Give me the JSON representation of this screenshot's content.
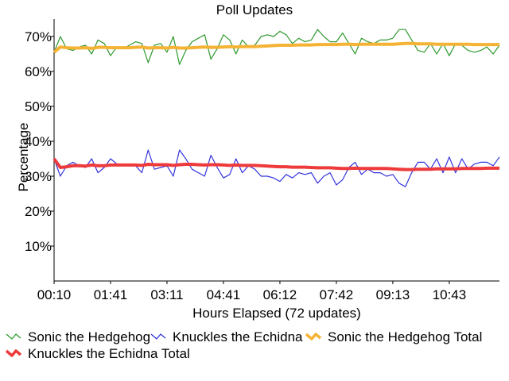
{
  "chart_data": {
    "type": "line",
    "title": "Poll Updates",
    "xlabel": "Hours Elapsed (72 updates)",
    "ylabel": "Percentage",
    "ylim": [
      0,
      75
    ],
    "yticks": [
      10,
      20,
      30,
      40,
      50,
      60,
      70
    ],
    "ytick_labels": [
      "10%",
      "20%",
      "30%",
      "40%",
      "50%",
      "60%",
      "70%"
    ],
    "xticks": [
      0,
      9,
      18,
      27,
      36,
      45,
      54,
      63
    ],
    "xtick_labels": [
      "00:10",
      "01:41",
      "03:11",
      "04:41",
      "06:12",
      "07:42",
      "09:13",
      "10:43"
    ],
    "x_count": 72,
    "grid": false,
    "legend_position": "bottom",
    "series": [
      {
        "name": "Sonic the Hedgehog",
        "color": "#2e9a2e",
        "width": 1.2,
        "values": [
          65.5,
          70.0,
          66.5,
          66.0,
          67.0,
          67.5,
          65.0,
          69.0,
          68.0,
          64.5,
          67.0,
          66.5,
          67.5,
          68.5,
          68.0,
          62.5,
          67.5,
          68.0,
          65.5,
          70.0,
          62.0,
          66.0,
          68.5,
          69.5,
          70.5,
          63.5,
          66.5,
          70.5,
          69.0,
          65.0,
          69.0,
          67.0,
          67.5,
          70.0,
          70.5,
          70.0,
          71.5,
          70.5,
          68.0,
          69.5,
          68.5,
          69.0,
          72.0,
          70.0,
          68.5,
          68.5,
          71.0,
          68.0,
          65.0,
          69.5,
          68.5,
          68.0,
          69.0,
          69.0,
          69.5,
          72.0,
          72.0,
          69.0,
          66.0,
          65.5,
          68.0,
          65.0,
          68.0,
          64.5,
          68.0,
          67.5,
          66.0,
          65.5,
          66.0,
          67.0,
          65.0,
          67.5
        ]
      },
      {
        "name": "Knuckles the Echidna",
        "color": "#3333dd",
        "width": 1.2,
        "values": [
          35.0,
          30.0,
          33.0,
          34.0,
          33.0,
          32.5,
          35.0,
          31.0,
          32.5,
          35.0,
          33.5,
          33.0,
          33.5,
          33.0,
          31.0,
          37.5,
          32.0,
          32.5,
          33.0,
          30.0,
          37.5,
          35.0,
          32.0,
          31.0,
          30.0,
          36.0,
          32.5,
          29.5,
          30.5,
          35.0,
          31.0,
          33.0,
          32.0,
          30.0,
          30.0,
          29.5,
          28.5,
          30.5,
          29.5,
          31.0,
          30.5,
          31.0,
          28.0,
          30.0,
          31.0,
          27.5,
          29.0,
          32.5,
          34.0,
          30.5,
          32.0,
          31.0,
          31.0,
          30.0,
          30.5,
          28.0,
          27.0,
          31.0,
          34.0,
          34.0,
          32.0,
          35.0,
          31.0,
          35.5,
          31.0,
          35.0,
          32.0,
          33.5,
          34.0,
          34.0,
          33.0,
          35.5
        ]
      },
      {
        "name": "Sonic the Hedgehog Total",
        "color": "#f5b335",
        "width": 4,
        "values": [
          65.5,
          67.0,
          66.8,
          66.7,
          66.7,
          66.8,
          66.6,
          66.9,
          66.9,
          66.8,
          66.8,
          66.8,
          66.8,
          66.9,
          67.0,
          66.7,
          66.8,
          66.8,
          66.7,
          66.9,
          66.7,
          66.7,
          66.8,
          66.9,
          67.0,
          66.9,
          66.9,
          67.0,
          67.1,
          67.0,
          67.1,
          67.1,
          67.1,
          67.2,
          67.3,
          67.4,
          67.5,
          67.5,
          67.5,
          67.6,
          67.6,
          67.6,
          67.7,
          67.7,
          67.7,
          67.7,
          67.8,
          67.8,
          67.7,
          67.8,
          67.8,
          67.8,
          67.8,
          67.8,
          67.8,
          67.9,
          68.0,
          68.0,
          67.9,
          67.9,
          67.9,
          67.8,
          67.8,
          67.8,
          67.8,
          67.8,
          67.8,
          67.7,
          67.7,
          67.7,
          67.7,
          67.7
        ]
      },
      {
        "name": "Knuckles the Echidna Total",
        "color": "#ee3a3a",
        "width": 4,
        "values": [
          35.0,
          32.5,
          32.7,
          33.0,
          33.0,
          32.9,
          33.2,
          33.0,
          33.0,
          33.2,
          33.2,
          33.2,
          33.2,
          33.2,
          33.1,
          33.4,
          33.3,
          33.3,
          33.3,
          33.1,
          33.3,
          33.4,
          33.4,
          33.3,
          33.2,
          33.3,
          33.3,
          33.2,
          33.1,
          33.2,
          33.1,
          33.1,
          33.1,
          33.0,
          32.9,
          32.8,
          32.7,
          32.7,
          32.6,
          32.6,
          32.6,
          32.5,
          32.4,
          32.4,
          32.4,
          32.3,
          32.2,
          32.2,
          32.3,
          32.2,
          32.2,
          32.2,
          32.2,
          32.2,
          32.1,
          32.0,
          31.9,
          31.9,
          32.0,
          32.0,
          32.0,
          32.1,
          32.1,
          32.1,
          32.1,
          32.2,
          32.2,
          32.2,
          32.2,
          32.3,
          32.3,
          32.3
        ]
      }
    ]
  }
}
